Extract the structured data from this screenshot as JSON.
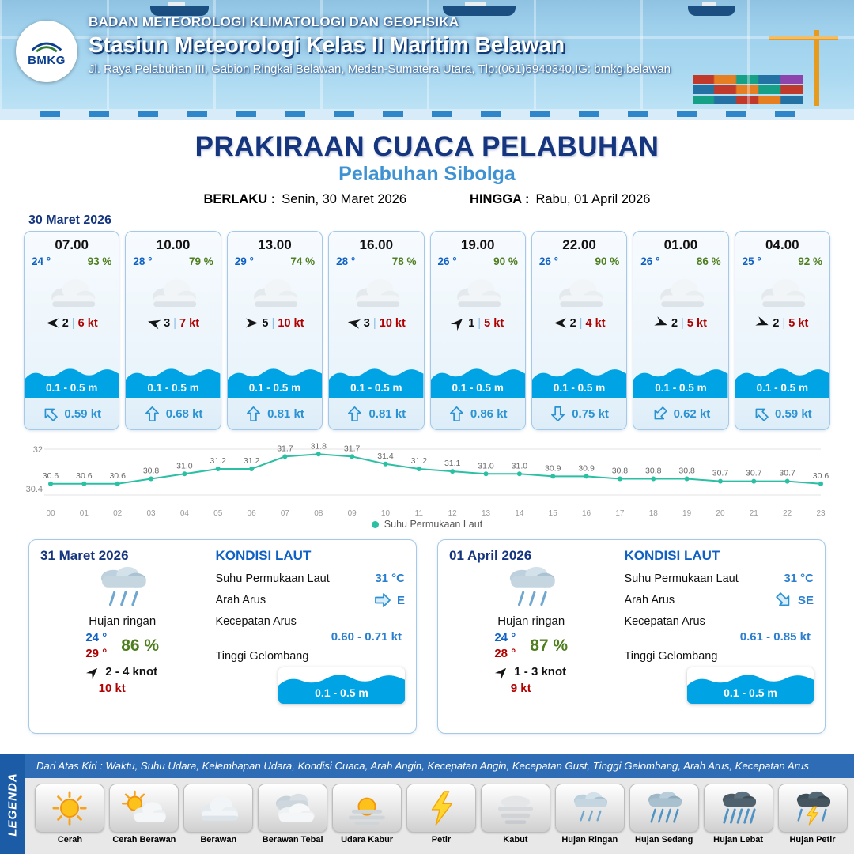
{
  "header": {
    "logo_text": "BMKG",
    "org": "BADAN METEOROLOGI KLIMATOLOGI DAN GEOFISIKA",
    "station": "Stasiun Meteorologi Kelas II Maritim Belawan",
    "address": "Jl. Raya Pelabuhan III, Gabion Ringkai Belawan, Medan-Sumatera Utara, Tlp:(061)6940340,IG: bmkg.belawan"
  },
  "title": {
    "main": "PRAKIRAAN CUACA PELABUHAN",
    "sub": "Pelabuhan Sibolga",
    "berlaku_label": "BERLAKU :",
    "berlaku_value": "Senin, 30 Maret 2026",
    "hingga_label": "HINGGA :",
    "hingga_value": "Rabu, 01 April 2026"
  },
  "forecast_date": "30 Maret 2026",
  "cards_meta": {
    "separator": "|"
  },
  "cards": [
    {
      "time": "07.00",
      "temp": "24 °",
      "rh": "93 %",
      "weather_icon": "cloud",
      "wind_dir_deg": 180,
      "wind_speed": "2",
      "gust": "6 kt",
      "wave": "0.1 - 0.5 m",
      "current_dir_deg": 315,
      "current": "0.59 kt"
    },
    {
      "time": "10.00",
      "temp": "28 °",
      "rh": "79 %",
      "weather_icon": "cloud",
      "wind_dir_deg": 195,
      "wind_speed": "3",
      "gust": "7 kt",
      "wave": "0.1 - 0.5 m",
      "current_dir_deg": 0,
      "current": "0.68 kt"
    },
    {
      "time": "13.00",
      "temp": "29 °",
      "rh": "74 %",
      "weather_icon": "cloud",
      "wind_dir_deg": 0,
      "wind_speed": "5",
      "gust": "10 kt",
      "wave": "0.1 - 0.5 m",
      "current_dir_deg": 0,
      "current": "0.81 kt"
    },
    {
      "time": "16.00",
      "temp": "28 °",
      "rh": "78 %",
      "weather_icon": "cloud",
      "wind_dir_deg": 190,
      "wind_speed": "3",
      "gust": "10 kt",
      "wave": "0.1 - 0.5 m",
      "current_dir_deg": 0,
      "current": "0.81 kt"
    },
    {
      "time": "19.00",
      "temp": "26 °",
      "rh": "90 %",
      "weather_icon": "cloud",
      "wind_dir_deg": 315,
      "wind_speed": "1",
      "gust": "5 kt",
      "wave": "0.1 - 0.5 m",
      "current_dir_deg": 0,
      "current": "0.86 kt"
    },
    {
      "time": "22.00",
      "temp": "26 °",
      "rh": "90 %",
      "weather_icon": "cloud",
      "wind_dir_deg": 180,
      "wind_speed": "2",
      "gust": "4 kt",
      "wave": "0.1 - 0.5 m",
      "current_dir_deg": 180,
      "current": "0.75 kt"
    },
    {
      "time": "01.00",
      "temp": "26 °",
      "rh": "86 %",
      "weather_icon": "cloud",
      "wind_dir_deg": 20,
      "wind_speed": "2",
      "gust": "5 kt",
      "wave": "0.1 - 0.5 m",
      "current_dir_deg": 225,
      "current": "0.62 kt"
    },
    {
      "time": "04.00",
      "temp": "25 °",
      "rh": "92 %",
      "weather_icon": "cloud",
      "wind_dir_deg": 20,
      "wind_speed": "2",
      "gust": "5 kt",
      "wave": "0.1 - 0.5 m",
      "current_dir_deg": 315,
      "current": "0.59 kt"
    }
  ],
  "chart_data": {
    "type": "line",
    "series_name": "Suhu Permukaan Laut",
    "x": [
      "00",
      "01",
      "02",
      "03",
      "04",
      "05",
      "06",
      "07",
      "08",
      "09",
      "10",
      "11",
      "12",
      "13",
      "14",
      "15",
      "16",
      "17",
      "18",
      "19",
      "20",
      "21",
      "22",
      "23"
    ],
    "values": [
      30.6,
      30.6,
      30.6,
      30.8,
      31.0,
      31.2,
      31.2,
      31.7,
      31.8,
      31.7,
      31.4,
      31.2,
      31.1,
      31.0,
      31.0,
      30.9,
      30.9,
      30.8,
      30.8,
      30.8,
      30.7,
      30.7,
      30.7,
      30.6
    ],
    "ylim": [
      30.4,
      32
    ],
    "y_axis_labels": [
      "32",
      "30.4"
    ],
    "xlabel": "",
    "ylabel": "",
    "grid": "top-and-bottom-only",
    "legend_position": "bottom-center",
    "line_color": "#2bbfa3"
  },
  "day_boxes": [
    {
      "date": "31 Maret 2026",
      "weather_icon": "light-rain",
      "condition": "Hujan ringan",
      "temp_min": "24 °",
      "rh": "86 %",
      "temp_max": "29 °",
      "wind_dir_deg": 315,
      "wind": "2  - 4 knot",
      "gust": "10 kt",
      "sea_title": "KONDISI LAUT",
      "sst_label": "Suhu Permukaan Laut",
      "sst": "31 °C",
      "current_dir_label": "Arah Arus",
      "current_dir": "E",
      "current_dir_deg": 90,
      "current_speed_label": "Kecepatan Arus",
      "current_speed": "0.60  - 0.71 kt",
      "wave_label": "Tinggi Gelombang",
      "wave": "0.1 - 0.5 m"
    },
    {
      "date": "01 April 2026",
      "weather_icon": "light-rain",
      "condition": "Hujan ringan",
      "temp_min": "24 °",
      "rh": "87 %",
      "temp_max": "28 °",
      "wind_dir_deg": 315,
      "wind": "1  - 3 knot",
      "gust": "9 kt",
      "sea_title": "KONDISI LAUT",
      "sst_label": "Suhu Permukaan Laut",
      "sst": "31 °C",
      "current_dir_label": "Arah Arus",
      "current_dir": "SE",
      "current_dir_deg": 135,
      "current_speed_label": "Kecepatan Arus",
      "current_speed": "0.61  - 0.85 kt",
      "wave_label": "Tinggi Gelombang",
      "wave": "0.1 - 0.5 m"
    }
  ],
  "legend": {
    "sidebar": "LEGENDA",
    "note": "Dari Atas Kiri : Waktu, Suhu Udara, Kelembapan Udara, Kondisi Cuaca, Arah Angin, Kecepatan Angin, Kecepatan Gust, Tinggi Gelombang, Arah Arus, Kecepatan Arus",
    "items": [
      {
        "label": "Cerah",
        "icon": "sun"
      },
      {
        "label": "Cerah Berawan",
        "icon": "sun-cloud"
      },
      {
        "label": "Berawan",
        "icon": "cloud"
      },
      {
        "label": "Berawan Tebal",
        "icon": "clouds"
      },
      {
        "label": "Udara Kabur",
        "icon": "haze"
      },
      {
        "label": "Petir",
        "icon": "lightning"
      },
      {
        "label": "Kabut",
        "icon": "fog"
      },
      {
        "label": "Hujan Ringan",
        "icon": "light-rain"
      },
      {
        "label": "Hujan Sedang",
        "icon": "rain"
      },
      {
        "label": "Hujan Lebat",
        "icon": "heavy-rain"
      },
      {
        "label": "Hujan Petir",
        "icon": "thunderstorm"
      }
    ]
  }
}
